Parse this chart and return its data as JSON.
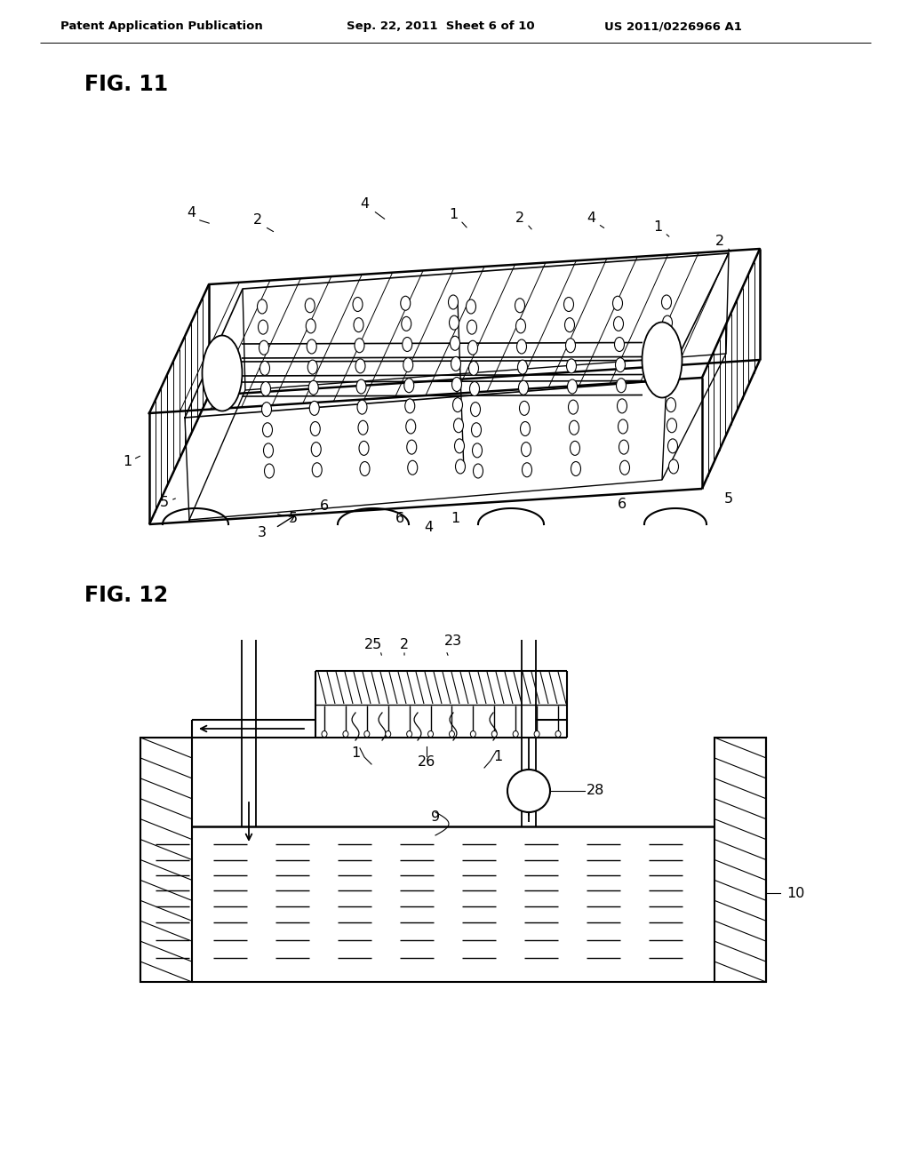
{
  "bg_color": "#ffffff",
  "header_text": "Patent Application Publication",
  "header_date": "Sep. 22, 2011  Sheet 6 of 10",
  "header_patent": "US 2011/0226966 A1",
  "fig11_label": "FIG. 11",
  "fig12_label": "FIG. 12",
  "line_color": "#000000",
  "label_fontsize": 11,
  "header_fontsize": 10,
  "fig_label_fontsize": 16
}
